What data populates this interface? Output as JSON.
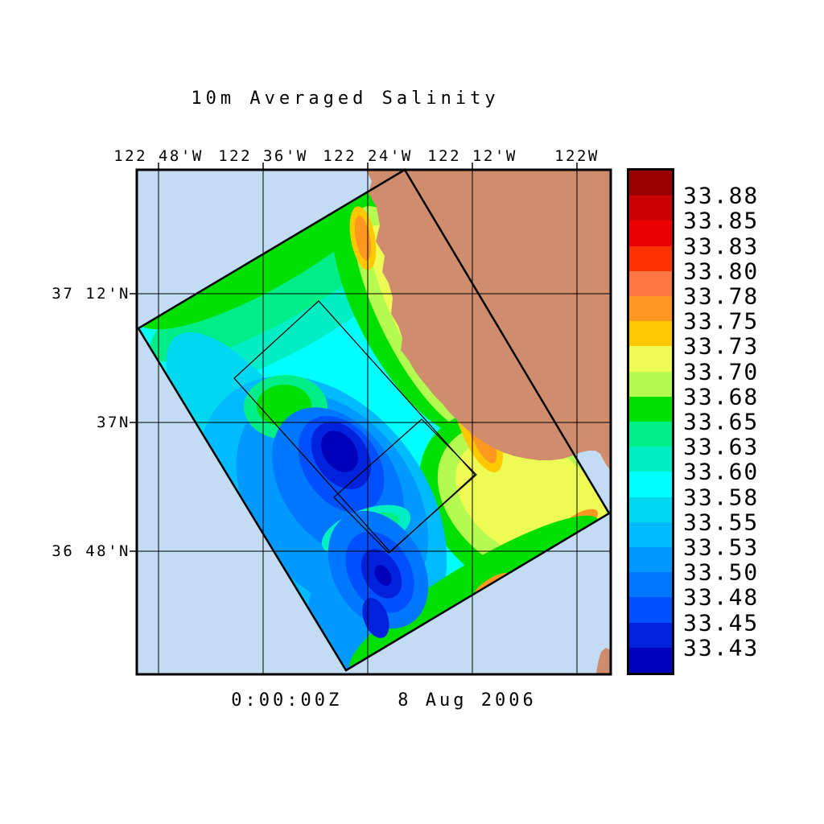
{
  "title": "10m Averaged Salinity",
  "timestamp": "0:00:00Z    8 Aug 2006",
  "axes": {
    "top_labels": [
      "122 48'W",
      "122 36'W",
      "122 24'W",
      "122 12'W",
      "122W"
    ],
    "left_labels": [
      "37 12'N",
      "37N",
      "36 48'N"
    ]
  },
  "colorbar": {
    "labels_top_to_bottom": [
      "33.88",
      "33.85",
      "33.83",
      "33.80",
      "33.78",
      "33.75",
      "33.73",
      "33.70",
      "33.68",
      "33.65",
      "33.63",
      "33.60",
      "33.58",
      "33.55",
      "33.53",
      "33.50",
      "33.48",
      "33.45",
      "33.43"
    ],
    "colors_top_to_bottom": [
      "#990000",
      "#CC0000",
      "#EE0000",
      "#FF3300",
      "#FF7744",
      "#FF9820",
      "#FFC800",
      "#EEFB55",
      "#B5FA50",
      "#00E000",
      "#00EE88",
      "#00EEC4",
      "#00FFFF",
      "#00D8F0",
      "#00BBFF",
      "#0099FF",
      "#0077FF",
      "#0050FF",
      "#0022DD",
      "#0000BB"
    ]
  },
  "map": {
    "ocean_color": "#C3DCF4",
    "land_color": "#CF8D6E",
    "line_color": "#000000",
    "overlays": [
      "outer model domain (rotated rectangle)",
      "inner nested domain 1",
      "inner nested domain 2",
      "coastline land mask",
      "latitude-longitude grid"
    ]
  },
  "chart_data": {
    "type": "heatmap",
    "title": "10m Averaged Salinity",
    "time_label": "0:00:00Z 8 Aug 2006",
    "x_axis": {
      "label": "longitude",
      "ticks": [
        "122 48'W",
        "122 36'W",
        "122 24'W",
        "122 12'W",
        "122W"
      ]
    },
    "y_axis": {
      "label": "latitude",
      "ticks": [
        "37 12'N",
        "37N",
        "36 48'N"
      ]
    },
    "value_range": [
      33.43,
      33.88
    ],
    "levels_low_to_high": [
      33.43,
      33.45,
      33.48,
      33.5,
      33.53,
      33.55,
      33.58,
      33.6,
      33.63,
      33.65,
      33.68,
      33.7,
      33.73,
      33.75,
      33.78,
      33.8,
      33.83,
      33.85,
      33.88
    ],
    "colors_low_to_high": [
      "#0000BB",
      "#0022DD",
      "#0050FF",
      "#0077FF",
      "#0099FF",
      "#00BBFF",
      "#00D8F0",
      "#00FFFF",
      "#00EEC4",
      "#00EE88",
      "#00E000",
      "#B5FA50",
      "#EEFB55",
      "#FFC800",
      "#FF9820",
      "#FF7744",
      "#FF3300",
      "#EE0000",
      "#CC0000",
      "#990000"
    ],
    "legend_position": "right",
    "grid": true,
    "features": [
      {
        "feature": "deepest low-salinity core (dark navy)",
        "approx_location": "122 30'W, 36 57'N",
        "approx_value": 33.43
      },
      {
        "feature": "second low-salinity core",
        "approx_location": "122 25'W, 36 46'N",
        "approx_value": 33.45
      },
      {
        "feature": "high-salinity streak along coast",
        "approx_location": "122 15'W, 36 56'N",
        "approx_value": 33.78
      },
      {
        "feature": "high-salinity streak near upper coast",
        "approx_location": "122 26'W, 37 10'N",
        "approx_value": 33.75
      },
      {
        "feature": "green fresher band along northwest edge of model domain",
        "approx_value": 33.65
      },
      {
        "feature": "yellow saltier pool southeast near bay",
        "approx_value": 33.72
      }
    ],
    "notes": "Filled-contour salinity field drawn inside a rotated rectangular model domain over a coastal map; land masked in tan; two nested thin-outlined sub-domain rectangles; water outside domain shown as light blue."
  }
}
